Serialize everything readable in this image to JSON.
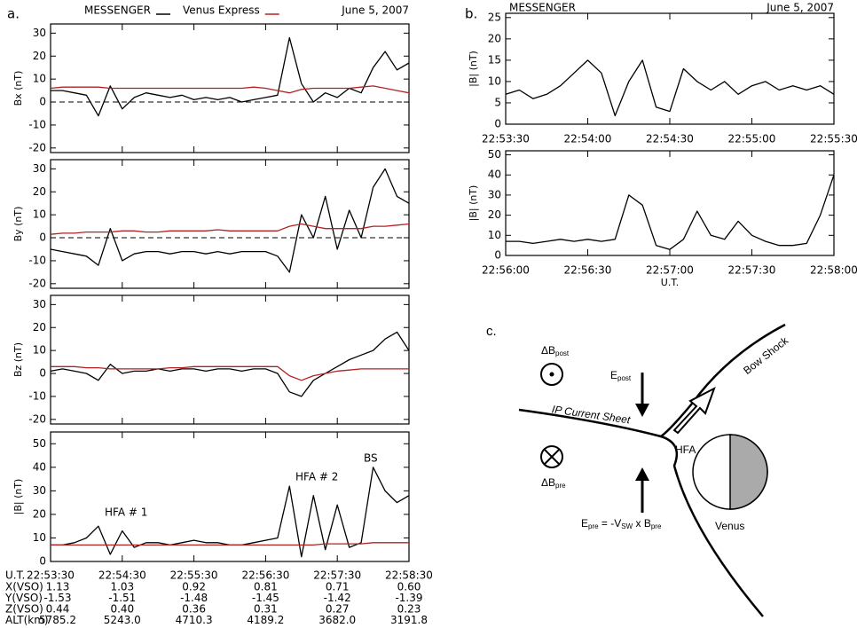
{
  "chart_data": [
    {
      "type": "line",
      "panel": "a.",
      "date": "June 5, 2007",
      "ylabel": "Bx (nT)",
      "x": [
        "22:53:30",
        "22:53:40",
        "22:53:50",
        "22:54:00",
        "22:54:10",
        "22:54:20",
        "22:54:30",
        "22:54:40",
        "22:54:50",
        "22:55:00",
        "22:55:10",
        "22:55:20",
        "22:55:30",
        "22:55:40",
        "22:55:50",
        "22:56:00",
        "22:56:10",
        "22:56:20",
        "22:56:30",
        "22:56:40",
        "22:56:50",
        "22:57:00",
        "22:57:10",
        "22:57:20",
        "22:57:30",
        "22:57:40",
        "22:57:50",
        "22:58:00",
        "22:58:10",
        "22:58:20",
        "22:58:30"
      ],
      "xlim": [
        "22:53:30",
        "22:58:30"
      ],
      "ylim": [
        -22,
        34
      ],
      "yticks": [
        -20,
        -10,
        0,
        10,
        20,
        30
      ],
      "zero_line": true,
      "series": [
        {
          "name": "MESSENGER",
          "color": "#000000",
          "values": [
            5,
            5,
            4,
            3,
            -6,
            7,
            -3,
            2,
            4,
            3,
            2,
            3,
            1,
            2,
            1,
            2,
            0,
            1,
            2,
            3,
            28,
            8,
            0,
            4,
            2,
            6,
            4,
            15,
            22,
            14,
            17
          ]
        },
        {
          "name": "Venus Express",
          "color": "#b22222",
          "values": [
            6,
            6.5,
            6.5,
            6.5,
            6.5,
            6,
            6,
            6,
            6,
            6,
            6,
            6,
            6,
            6,
            6,
            6,
            6,
            6.5,
            6,
            5,
            4,
            5.5,
            6,
            6,
            6,
            6,
            6.5,
            7,
            6,
            5,
            4
          ]
        }
      ]
    },
    {
      "type": "line",
      "ylabel": "By (nT)",
      "x": [
        "22:53:30",
        "22:53:40",
        "22:53:50",
        "22:54:00",
        "22:54:10",
        "22:54:20",
        "22:54:30",
        "22:54:40",
        "22:54:50",
        "22:55:00",
        "22:55:10",
        "22:55:20",
        "22:55:30",
        "22:55:40",
        "22:55:50",
        "22:56:00",
        "22:56:10",
        "22:56:20",
        "22:56:30",
        "22:56:40",
        "22:56:50",
        "22:57:00",
        "22:57:10",
        "22:57:20",
        "22:57:30",
        "22:57:40",
        "22:57:50",
        "22:58:00",
        "22:58:10",
        "22:58:20",
        "22:58:30"
      ],
      "xlim": [
        "22:53:30",
        "22:58:30"
      ],
      "ylim": [
        -22,
        34
      ],
      "yticks": [
        -20,
        -10,
        0,
        10,
        20,
        30
      ],
      "zero_line": true,
      "series": [
        {
          "color": "#000000",
          "values": [
            -5,
            -6,
            -7,
            -8,
            -12,
            4,
            -10,
            -7,
            -6,
            -6,
            -7,
            -6,
            -6,
            -7,
            -6,
            -7,
            -6,
            -6,
            -6,
            -8,
            -15,
            10,
            0,
            18,
            -5,
            12,
            0,
            22,
            30,
            18,
            15
          ]
        },
        {
          "color": "#b22222",
          "values": [
            1.5,
            2,
            2,
            2.5,
            2.5,
            2.5,
            3,
            3,
            2.5,
            2.5,
            3,
            3,
            3,
            3,
            3.5,
            3,
            3,
            3,
            3,
            3,
            5,
            6,
            5,
            4,
            4,
            4,
            4,
            5,
            5,
            5.5,
            6
          ]
        }
      ]
    },
    {
      "type": "line",
      "ylabel": "Bz (nT)",
      "x": [
        "22:53:30",
        "22:53:40",
        "22:53:50",
        "22:54:00",
        "22:54:10",
        "22:54:20",
        "22:54:30",
        "22:54:40",
        "22:54:50",
        "22:55:00",
        "22:55:10",
        "22:55:20",
        "22:55:30",
        "22:55:40",
        "22:55:50",
        "22:56:00",
        "22:56:10",
        "22:56:20",
        "22:56:30",
        "22:56:40",
        "22:56:50",
        "22:57:00",
        "22:57:10",
        "22:57:20",
        "22:57:30",
        "22:57:40",
        "22:57:50",
        "22:58:00",
        "22:58:10",
        "22:58:20",
        "22:58:30"
      ],
      "xlim": [
        "22:53:30",
        "22:58:30"
      ],
      "ylim": [
        -22,
        34
      ],
      "yticks": [
        -20,
        -10,
        0,
        10,
        20,
        30
      ],
      "series": [
        {
          "color": "#000000",
          "values": [
            1,
            2,
            1,
            0,
            -3,
            4,
            0,
            1,
            1,
            2,
            1,
            2,
            2,
            1,
            2,
            2,
            1,
            2,
            2,
            0,
            -8,
            -10,
            -3,
            0,
            3,
            6,
            8,
            10,
            15,
            18,
            10
          ]
        },
        {
          "color": "#b22222",
          "values": [
            3,
            3,
            3,
            2.5,
            2.5,
            2,
            2,
            2,
            2,
            2,
            2.5,
            2.5,
            3,
            3,
            3,
            3,
            3,
            3,
            3,
            3,
            -1,
            -3,
            -1,
            0,
            1,
            1.5,
            2,
            2,
            2,
            2,
            2
          ]
        }
      ]
    },
    {
      "type": "line",
      "ylabel": "|B| (nT)",
      "x": [
        "22:53:30",
        "22:53:40",
        "22:53:50",
        "22:54:00",
        "22:54:10",
        "22:54:20",
        "22:54:30",
        "22:54:40",
        "22:54:50",
        "22:55:00",
        "22:55:10",
        "22:55:20",
        "22:55:30",
        "22:55:40",
        "22:55:50",
        "22:56:00",
        "22:56:10",
        "22:56:20",
        "22:56:30",
        "22:56:40",
        "22:56:50",
        "22:57:00",
        "22:57:10",
        "22:57:20",
        "22:57:30",
        "22:57:40",
        "22:57:50",
        "22:58:00",
        "22:58:10",
        "22:58:20",
        "22:58:30"
      ],
      "xlim": [
        "22:53:30",
        "22:58:30"
      ],
      "ylim": [
        0,
        55
      ],
      "yticks": [
        0,
        10,
        20,
        30,
        40,
        50
      ],
      "xticks": [
        "22:53:30",
        "22:54:30",
        "22:55:30",
        "22:56:30",
        "22:57:30",
        "22:58:30"
      ],
      "annotations": [
        "HFA # 1",
        "HFA # 2",
        "BS"
      ],
      "series": [
        {
          "color": "#000000",
          "values": [
            7,
            7,
            8,
            10,
            15,
            3,
            13,
            6,
            8,
            8,
            7,
            8,
            9,
            8,
            8,
            7,
            7,
            8,
            9,
            10,
            32,
            2,
            28,
            5,
            24,
            6,
            8,
            40,
            30,
            25,
            28
          ]
        },
        {
          "color": "#b22222",
          "values": [
            7,
            7,
            7,
            7,
            7,
            7,
            7,
            7,
            7,
            7,
            7,
            7,
            7,
            7,
            7,
            7,
            7,
            7,
            7,
            7,
            7,
            7,
            7,
            7.5,
            7.5,
            7.5,
            7.5,
            8,
            8,
            8,
            8
          ]
        }
      ]
    },
    {
      "type": "line",
      "panel": "b.",
      "title": "MESSENGER",
      "date": "June 5, 2007",
      "ylabel": "|B| (nT)",
      "x": [
        "22:53:30",
        "22:53:35",
        "22:53:40",
        "22:53:45",
        "22:53:50",
        "22:53:55",
        "22:54:00",
        "22:54:05",
        "22:54:10",
        "22:54:15",
        "22:54:20",
        "22:54:25",
        "22:54:30",
        "22:54:35",
        "22:54:40",
        "22:54:45",
        "22:54:50",
        "22:54:55",
        "22:55:00",
        "22:55:05",
        "22:55:10",
        "22:55:15",
        "22:55:20",
        "22:55:25",
        "22:55:30"
      ],
      "xlim": [
        "22:53:30",
        "22:55:30"
      ],
      "ylim": [
        0,
        26
      ],
      "yticks": [
        0,
        5,
        10,
        15,
        20,
        25
      ],
      "xticks": [
        "22:53:30",
        "22:54:00",
        "22:54:30",
        "22:55:00",
        "22:55:30"
      ],
      "series": [
        {
          "color": "#000000",
          "values": [
            7,
            8,
            6,
            7,
            9,
            12,
            15,
            12,
            2,
            10,
            15,
            4,
            3,
            13,
            10,
            8,
            10,
            7,
            9,
            10,
            8,
            9,
            8,
            9,
            7
          ]
        }
      ]
    },
    {
      "type": "line",
      "ylabel": "|B| (nT)",
      "xlabel": "U.T.",
      "x": [
        "22:56:00",
        "22:56:05",
        "22:56:10",
        "22:56:15",
        "22:56:20",
        "22:56:25",
        "22:56:30",
        "22:56:35",
        "22:56:40",
        "22:56:45",
        "22:56:50",
        "22:56:55",
        "22:57:00",
        "22:57:05",
        "22:57:10",
        "22:57:15",
        "22:57:20",
        "22:57:25",
        "22:57:30",
        "22:57:35",
        "22:57:40",
        "22:57:45",
        "22:57:50",
        "22:57:55",
        "22:58:00"
      ],
      "xlim": [
        "22:56:00",
        "22:58:00"
      ],
      "ylim": [
        0,
        52
      ],
      "yticks": [
        0,
        10,
        20,
        30,
        40,
        50
      ],
      "xticks": [
        "22:56:00",
        "22:56:30",
        "22:57:00",
        "22:57:30",
        "22:58:00"
      ],
      "series": [
        {
          "color": "#000000",
          "values": [
            7,
            7,
            6,
            7,
            8,
            7,
            8,
            7,
            8,
            30,
            25,
            5,
            3,
            8,
            22,
            10,
            8,
            17,
            10,
            7,
            5,
            5,
            6,
            20,
            40
          ]
        }
      ]
    }
  ],
  "ephemeris": {
    "ut_label": "U.T.",
    "rows": [
      {
        "label": "X(VSO)",
        "values": [
          "1.13",
          "1.03",
          "0.92",
          "0.81",
          "0.71",
          "0.60"
        ]
      },
      {
        "label": "Y(VSO)",
        "values": [
          "-1.53",
          "-1.51",
          "-1.48",
          "-1.45",
          "-1.42",
          "-1.39"
        ]
      },
      {
        "label": "Z(VSO)",
        "values": [
          "0.44",
          "0.40",
          "0.36",
          "0.31",
          "0.27",
          "0.23"
        ]
      },
      {
        "label": "ALT(km)",
        "values": [
          "5785.2",
          "5243.0",
          "4710.3",
          "4189.2",
          "3682.0",
          "3191.8"
        ]
      }
    ]
  },
  "diagram": {
    "panel": "c.",
    "delta_b_post": [
      "ΔB",
      "post"
    ],
    "e_post": [
      "E",
      "post"
    ],
    "current_sheet": "IP Current Sheet",
    "bow_shock": "Bow Shock",
    "hfa": "HFA",
    "delta_b_pre": [
      "ΔB",
      "pre"
    ],
    "e_pre": [
      "E",
      "pre",
      " = -V",
      "SW",
      " x B",
      "pre"
    ],
    "venus": "Venus"
  }
}
